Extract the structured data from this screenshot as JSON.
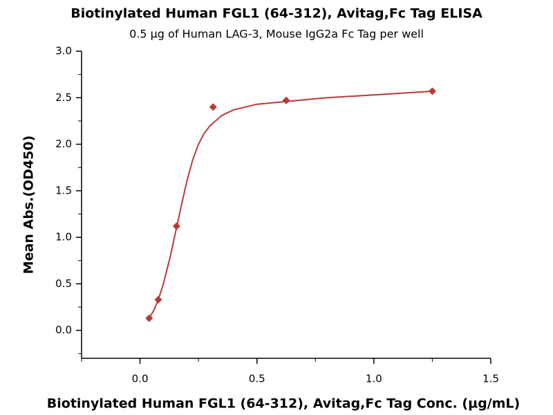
{
  "chart_data": {
    "type": "scatter",
    "title": "Biotinylated Human FGL1 (64-312), Avitag,Fc Tag ELISA",
    "subtitle": "0.5 µg of Human LAG-3, Mouse IgG2a Fc Tag per well",
    "x_label": "Biotinylated Human FGL1 (64-312), Avitag,Fc Tag Conc. (µg/mL)",
    "y_label": "Mean Abs.(OD450)",
    "x": [
      0.039,
      0.078,
      0.156,
      0.3125,
      0.625,
      1.25
    ],
    "values": [
      0.13,
      0.33,
      1.12,
      2.4,
      2.47,
      2.57
    ],
    "color": "#b83a36",
    "fit": {
      "x": [
        0.039,
        0.06,
        0.078,
        0.1,
        0.13,
        0.156,
        0.18,
        0.2,
        0.225,
        0.25,
        0.275,
        0.3,
        0.35,
        0.4,
        0.5,
        0.625,
        0.8,
        1.0,
        1.25
      ],
      "y": [
        0.13,
        0.22,
        0.33,
        0.5,
        0.8,
        1.1,
        1.38,
        1.6,
        1.83,
        2.0,
        2.12,
        2.2,
        2.31,
        2.37,
        2.43,
        2.46,
        2.5,
        2.53,
        2.57
      ]
    },
    "xlim": [
      -0.25,
      1.5
    ],
    "ylim": [
      -0.3,
      3.0
    ],
    "xticks": [
      {
        "value": 0,
        "label": "0.0"
      },
      0.5,
      {
        "value": 1,
        "label": "1.0"
      },
      1.5
    ],
    "yticks": [
      {
        "value": 0,
        "label": "0.0"
      },
      0.5,
      {
        "value": 1,
        "label": "1.0"
      },
      1.5,
      {
        "value": 2,
        "label": "2.0"
      },
      2.5,
      {
        "value": 3,
        "label": "3.0"
      }
    ],
    "xminorticks": [
      -0.25,
      0.25,
      0.75,
      1.25
    ],
    "yminorticks": [
      -0.25,
      0.25,
      0.75,
      1.25,
      1.75,
      2.25,
      2.75
    ]
  }
}
